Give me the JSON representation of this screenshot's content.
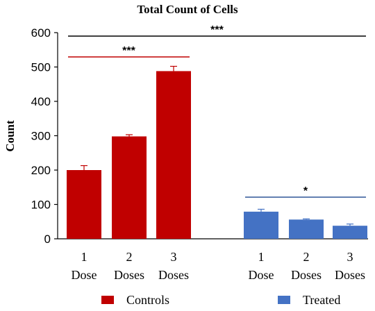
{
  "chart_data": {
    "type": "bar",
    "title": "Total Count  of Cells",
    "ylabel": "Count",
    "xlabel": "",
    "ylim": [
      0,
      600
    ],
    "yticks": [
      0,
      100,
      200,
      300,
      400,
      500,
      600
    ],
    "grid": false,
    "legend_position": "bottom",
    "groups": [
      {
        "name": "Controls",
        "color": "#C00000",
        "categories": [
          {
            "number": "1",
            "label": "Dose"
          },
          {
            "number": "2",
            "label": "Doses"
          },
          {
            "number": "3",
            "label": "Doses"
          }
        ],
        "values": [
          200,
          298,
          488
        ],
        "errors": [
          13,
          5,
          14
        ]
      },
      {
        "name": "Treated",
        "color": "#4472C4",
        "categories": [
          {
            "number": "1",
            "label": "Dose"
          },
          {
            "number": "2",
            "label": "Doses"
          },
          {
            "number": "3",
            "label": "Doses"
          }
        ],
        "values": [
          79,
          56,
          38
        ],
        "errors": [
          7,
          2,
          5
        ]
      }
    ],
    "significance": [
      {
        "label": "***",
        "color": "#000000",
        "from": "Controls 1 Dose",
        "to": "Treated 3 Doses"
      },
      {
        "label": "***",
        "color": "#C00000",
        "from": "Controls 1 Dose",
        "to": "Controls 3 Doses"
      },
      {
        "label": "*",
        "color": "#2F5597",
        "from": "Treated 1 Dose",
        "to": "Treated 3 Doses"
      }
    ]
  }
}
